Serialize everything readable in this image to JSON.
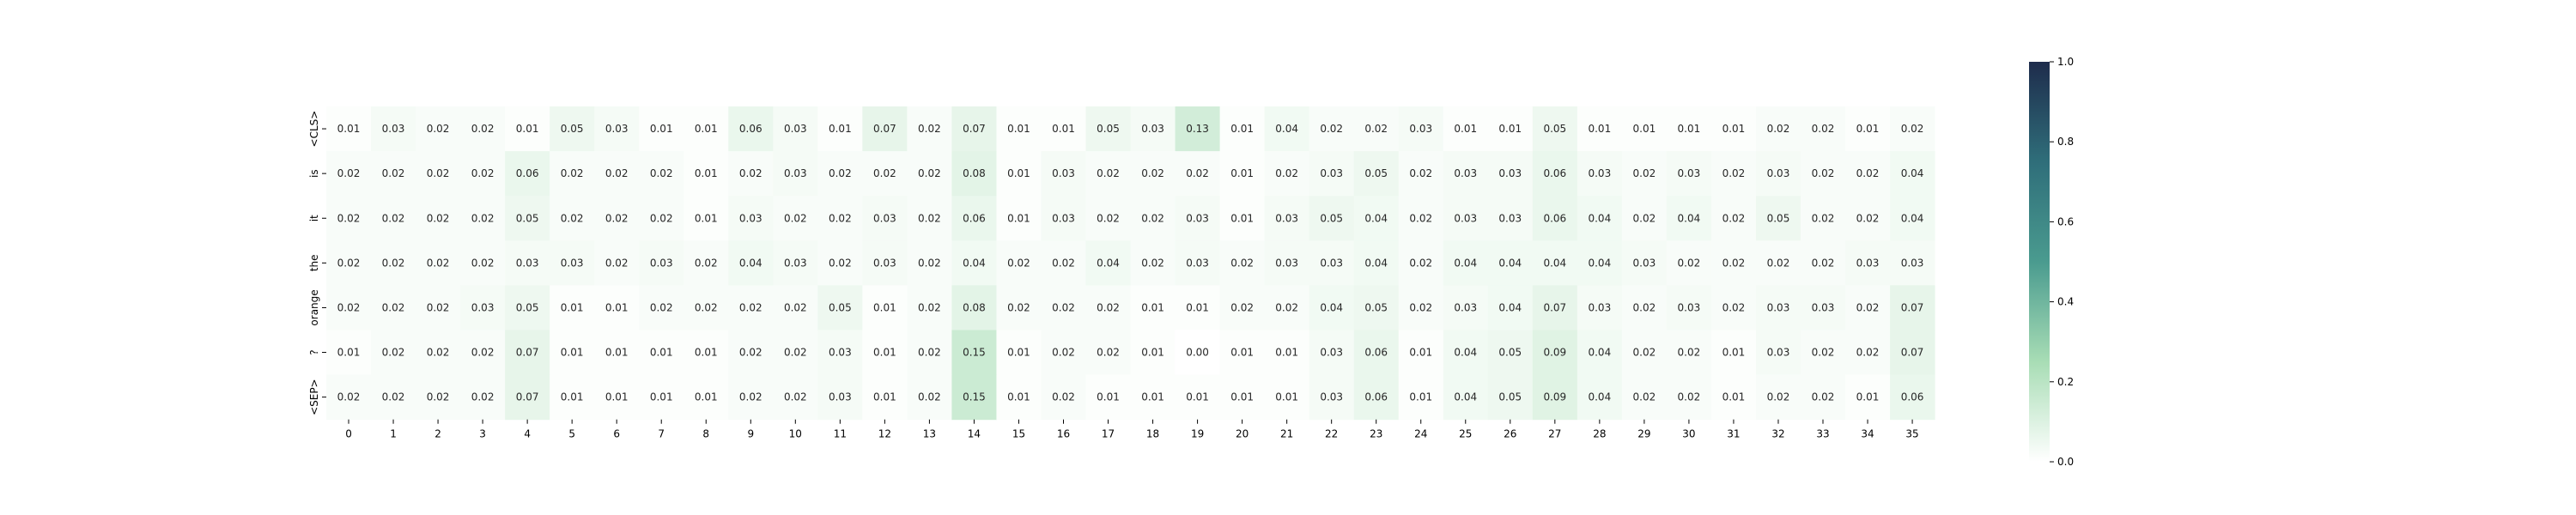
{
  "chart_data": {
    "type": "heatmap",
    "title": "",
    "xlabel": "",
    "ylabel": "",
    "x_labels": [
      "0",
      "1",
      "2",
      "3",
      "4",
      "5",
      "6",
      "7",
      "8",
      "9",
      "10",
      "11",
      "12",
      "13",
      "14",
      "15",
      "16",
      "17",
      "18",
      "19",
      "20",
      "21",
      "22",
      "23",
      "24",
      "25",
      "26",
      "27",
      "28",
      "29",
      "30",
      "31",
      "32",
      "33",
      "34",
      "35"
    ],
    "y_labels": [
      "<CLS>",
      "is",
      "it",
      "the",
      "orange",
      "?",
      "<SEP>"
    ],
    "values": [
      [
        0.01,
        0.03,
        0.02,
        0.02,
        0.01,
        0.05,
        0.03,
        0.01,
        0.01,
        0.06,
        0.03,
        0.01,
        0.07,
        0.02,
        0.07,
        0.01,
        0.01,
        0.05,
        0.03,
        0.13,
        0.01,
        0.04,
        0.02,
        0.02,
        0.03,
        0.01,
        0.01,
        0.05,
        0.01,
        0.01,
        0.01,
        0.01,
        0.02,
        0.02,
        0.01,
        0.02
      ],
      [
        0.02,
        0.02,
        0.02,
        0.02,
        0.06,
        0.02,
        0.02,
        0.02,
        0.01,
        0.02,
        0.03,
        0.02,
        0.02,
        0.02,
        0.08,
        0.01,
        0.03,
        0.02,
        0.02,
        0.02,
        0.01,
        0.02,
        0.03,
        0.05,
        0.02,
        0.03,
        0.03,
        0.06,
        0.03,
        0.02,
        0.03,
        0.02,
        0.03,
        0.02,
        0.02,
        0.04
      ],
      [
        0.02,
        0.02,
        0.02,
        0.02,
        0.05,
        0.02,
        0.02,
        0.02,
        0.01,
        0.03,
        0.02,
        0.02,
        0.03,
        0.02,
        0.06,
        0.01,
        0.03,
        0.02,
        0.02,
        0.03,
        0.01,
        0.03,
        0.05,
        0.04,
        0.02,
        0.03,
        0.03,
        0.06,
        0.04,
        0.02,
        0.04,
        0.02,
        0.05,
        0.02,
        0.02,
        0.04
      ],
      [
        0.02,
        0.02,
        0.02,
        0.02,
        0.03,
        0.03,
        0.02,
        0.03,
        0.02,
        0.04,
        0.03,
        0.02,
        0.03,
        0.02,
        0.04,
        0.02,
        0.02,
        0.04,
        0.02,
        0.03,
        0.02,
        0.03,
        0.03,
        0.04,
        0.02,
        0.04,
        0.04,
        0.04,
        0.04,
        0.03,
        0.02,
        0.02,
        0.02,
        0.02,
        0.03,
        0.03
      ],
      [
        0.02,
        0.02,
        0.02,
        0.03,
        0.05,
        0.01,
        0.01,
        0.02,
        0.02,
        0.02,
        0.02,
        0.05,
        0.01,
        0.02,
        0.08,
        0.02,
        0.02,
        0.02,
        0.01,
        0.01,
        0.02,
        0.02,
        0.04,
        0.05,
        0.02,
        0.03,
        0.04,
        0.07,
        0.03,
        0.02,
        0.03,
        0.02,
        0.03,
        0.03,
        0.02,
        0.07
      ],
      [
        0.01,
        0.02,
        0.02,
        0.02,
        0.07,
        0.01,
        0.01,
        0.01,
        0.01,
        0.02,
        0.02,
        0.03,
        0.01,
        0.02,
        0.15,
        0.01,
        0.02,
        0.02,
        0.01,
        0.0,
        0.01,
        0.01,
        0.03,
        0.06,
        0.01,
        0.04,
        0.05,
        0.09,
        0.04,
        0.02,
        0.02,
        0.01,
        0.03,
        0.02,
        0.02,
        0.07
      ],
      [
        0.02,
        0.02,
        0.02,
        0.02,
        0.07,
        0.01,
        0.01,
        0.01,
        0.01,
        0.02,
        0.02,
        0.03,
        0.01,
        0.02,
        0.15,
        0.01,
        0.02,
        0.01,
        0.01,
        0.01,
        0.01,
        0.01,
        0.03,
        0.06,
        0.01,
        0.04,
        0.05,
        0.09,
        0.04,
        0.02,
        0.02,
        0.01,
        0.02,
        0.02,
        0.01,
        0.06
      ]
    ],
    "value_format": "2 decimals",
    "colorbar": {
      "range": [
        0.0,
        1.0
      ],
      "ticks": [
        0.0,
        0.2,
        0.4,
        0.6,
        0.8,
        1.0
      ],
      "tick_labels": [
        "0.0",
        "0.2",
        "0.4",
        "0.6",
        "0.8",
        "1.0"
      ],
      "colors": [
        "#ffffff",
        "#a8ddb5",
        "#4a9b8f",
        "#2f6e7a",
        "#1e2c4c"
      ]
    },
    "grid": false,
    "annotations": true
  }
}
